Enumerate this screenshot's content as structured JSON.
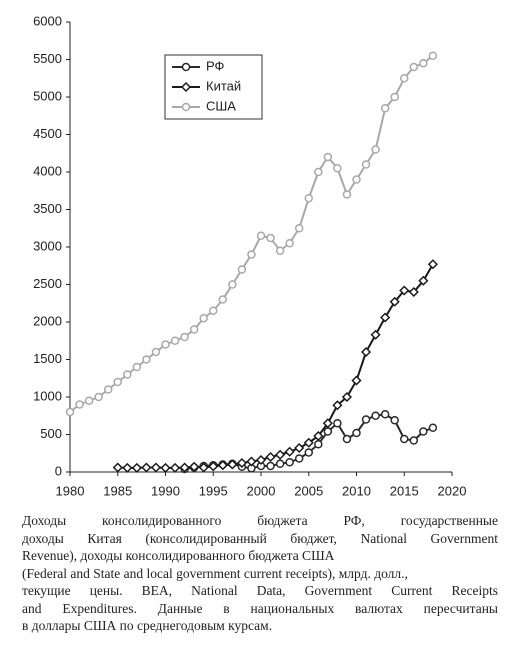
{
  "chart_data": {
    "type": "line",
    "x": [
      1980,
      1981,
      1982,
      1983,
      1984,
      1985,
      1986,
      1987,
      1988,
      1989,
      1990,
      1991,
      1992,
      1993,
      1994,
      1995,
      1996,
      1997,
      1998,
      1999,
      2000,
      2001,
      2002,
      2003,
      2004,
      2005,
      2006,
      2007,
      2008,
      2009,
      2010,
      2011,
      2012,
      2013,
      2014,
      2015,
      2016,
      2017,
      2018
    ],
    "series": [
      {
        "name": "РФ",
        "color": "#2a2a2a",
        "marker": "circle",
        "values": [
          null,
          null,
          null,
          null,
          null,
          null,
          null,
          null,
          null,
          null,
          null,
          null,
          40,
          60,
          80,
          90,
          100,
          110,
          70,
          50,
          80,
          80,
          110,
          130,
          180,
          260,
          370,
          540,
          650,
          440,
          520,
          700,
          750,
          770,
          690,
          440,
          420,
          540,
          590
        ]
      },
      {
        "name": "Китай",
        "color": "#1a1a1a",
        "marker": "diamond",
        "values": [
          null,
          null,
          null,
          null,
          null,
          60,
          55,
          55,
          60,
          60,
          55,
          55,
          60,
          70,
          60,
          75,
          90,
          100,
          120,
          140,
          160,
          200,
          230,
          270,
          320,
          390,
          480,
          650,
          890,
          1000,
          1220,
          1600,
          1830,
          2060,
          2270,
          2420,
          2400,
          2550,
          2770
        ]
      },
      {
        "name": "США",
        "color": "#a8a8a8",
        "marker": "circle",
        "values": [
          800,
          900,
          950,
          1000,
          1100,
          1200,
          1300,
          1400,
          1500,
          1600,
          1700,
          1750,
          1800,
          1900,
          2050,
          2150,
          2300,
          2500,
          2700,
          2900,
          3150,
          3120,
          2950,
          3050,
          3250,
          3650,
          4000,
          4200,
          4050,
          3700,
          3900,
          4100,
          4300,
          4850,
          5000,
          5250,
          5400,
          5450,
          5550
        ]
      }
    ],
    "xlim": [
      1980,
      2020
    ],
    "xticks": [
      1980,
      1985,
      1990,
      1995,
      2000,
      2005,
      2010,
      2015,
      2020
    ],
    "ylim": [
      0,
      6000
    ],
    "yticks": [
      0,
      500,
      1000,
      1500,
      2000,
      2500,
      3000,
      3500,
      4000,
      4500,
      5000,
      5500,
      6000
    ],
    "legend": "top-left"
  },
  "caption": [
    "Доходы консолидированного бюджета РФ, государственные",
    "доходы Китая (консолидированный бюджет, National Government",
    "Revenue), доходы консолидированного бюджета США",
    "(Federal and State and local government current receipts), млрд. долл.,",
    "текущие цены. BEA, National Data, Government Current Receipts",
    "and Expenditures. Данные в национальных валютах пересчитаны",
    "в доллары США по среднегодовым курсам."
  ]
}
